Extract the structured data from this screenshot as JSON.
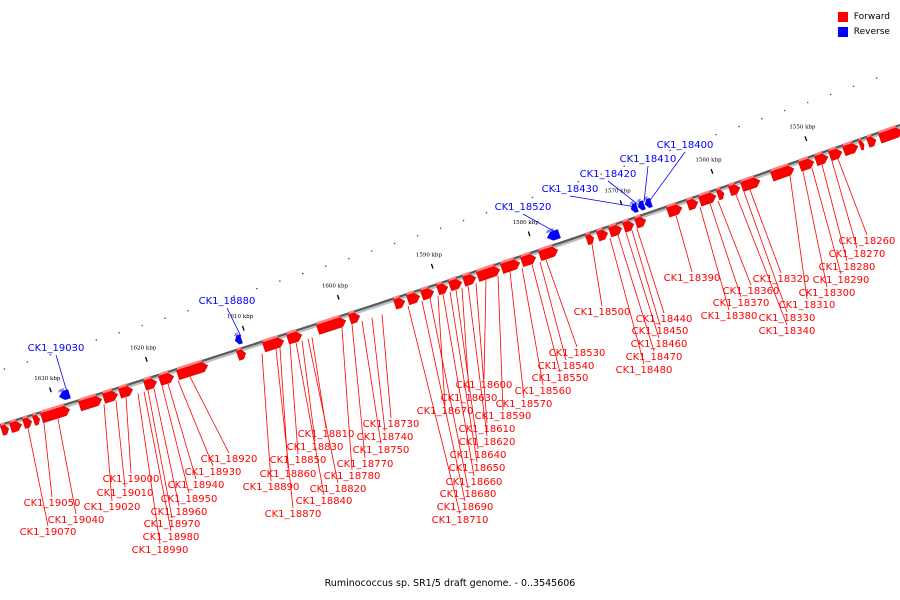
{
  "legend": {
    "forward": {
      "label": "Forward",
      "color": "#ff0000"
    },
    "reverse": {
      "label": "Reverse",
      "color": "#0000ff"
    }
  },
  "caption": "Ruminococcus sp. SR1/5 draft genome. - 0..3545606",
  "scale_ticks": [
    "1550 kbp",
    "1560 kbp",
    "1570 kbp",
    "1580 kbp",
    "1590 kbp",
    "1600 kbp",
    "1610 kbp",
    "1620 kbp",
    "1630 kbp"
  ],
  "genes_reverse": [
    "CK1_18400",
    "CK1_18410",
    "CK1_18420",
    "CK1_18430",
    "CK1_18520",
    "CK1_18880",
    "CK1_19030"
  ],
  "genes_forward": [
    "CK1_18260",
    "CK1_18270",
    "CK1_18280",
    "CK1_18290",
    "CK1_18300",
    "CK1_18310",
    "CK1_18320",
    "CK1_18330",
    "CK1_18340",
    "CK1_18360",
    "CK1_18370",
    "CK1_18380",
    "CK1_18390",
    "CK1_18440",
    "CK1_18450",
    "CK1_18460",
    "CK1_18470",
    "CK1_18480",
    "CK1_18500",
    "CK1_18530",
    "CK1_18540",
    "CK1_18550",
    "CK1_18560",
    "CK1_18570",
    "CK1_18590",
    "CK1_18600",
    "CK1_18610",
    "CK1_18620",
    "CK1_18630",
    "CK1_18640",
    "CK1_18650",
    "CK1_18660",
    "CK1_18670",
    "CK1_18680",
    "CK1_18690",
    "CK1_18710",
    "CK1_18730",
    "CK1_18740",
    "CK1_18750",
    "CK1_18770",
    "CK1_18780",
    "CK1_18810",
    "CK1_18820",
    "CK1_18830",
    "CK1_18840",
    "CK1_18850",
    "CK1_18860",
    "CK1_18870",
    "CK1_18890",
    "CK1_18920",
    "CK1_18930",
    "CK1_18940",
    "CK1_18950",
    "CK1_18960",
    "CK1_18970",
    "CK1_18980",
    "CK1_18990",
    "CK1_19000",
    "CK1_19010",
    "CK1_19020",
    "CK1_19040",
    "CK1_19050",
    "CK1_19070"
  ]
}
